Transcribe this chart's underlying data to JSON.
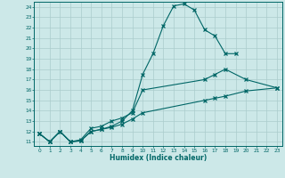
{
  "bg_color": "#cce8e8",
  "grid_color": "#aacccc",
  "line_color": "#006666",
  "xlabel": "Humidex (Indice chaleur)",
  "xlim": [
    -0.5,
    23.5
  ],
  "ylim": [
    10.6,
    24.5
  ],
  "yticks": [
    11,
    12,
    13,
    14,
    15,
    16,
    17,
    18,
    19,
    20,
    21,
    22,
    23,
    24
  ],
  "xticks": [
    0,
    1,
    2,
    3,
    4,
    5,
    6,
    7,
    8,
    9,
    10,
    11,
    12,
    13,
    14,
    15,
    16,
    17,
    18,
    19,
    20,
    21,
    22,
    23
  ],
  "line1_x": [
    0,
    1,
    2,
    3,
    4,
    5,
    6,
    7,
    8,
    9,
    10,
    11,
    12,
    13,
    14,
    15,
    16,
    17,
    18,
    19
  ],
  "line1_y": [
    11.8,
    11.0,
    12.0,
    11.0,
    11.1,
    12.0,
    12.2,
    12.5,
    13.0,
    14.0,
    17.5,
    19.5,
    22.2,
    24.1,
    24.3,
    23.7,
    21.8,
    21.2,
    19.5,
    19.5
  ],
  "line2_x": [
    0,
    1,
    2,
    3,
    4,
    5,
    6,
    7,
    8,
    9,
    10,
    16,
    17,
    18,
    20,
    23
  ],
  "line2_y": [
    11.8,
    11.0,
    12.0,
    11.0,
    11.2,
    12.3,
    12.5,
    13.0,
    13.3,
    13.8,
    16.0,
    17.0,
    17.5,
    18.0,
    17.0,
    16.2
  ],
  "line3_x": [
    0,
    1,
    2,
    3,
    4,
    5,
    6,
    7,
    8,
    9,
    10,
    16,
    17,
    18,
    20,
    23
  ],
  "line3_y": [
    11.8,
    11.0,
    12.0,
    11.0,
    11.1,
    12.0,
    12.2,
    12.4,
    12.7,
    13.2,
    13.8,
    15.0,
    15.2,
    15.4,
    15.9,
    16.2
  ]
}
